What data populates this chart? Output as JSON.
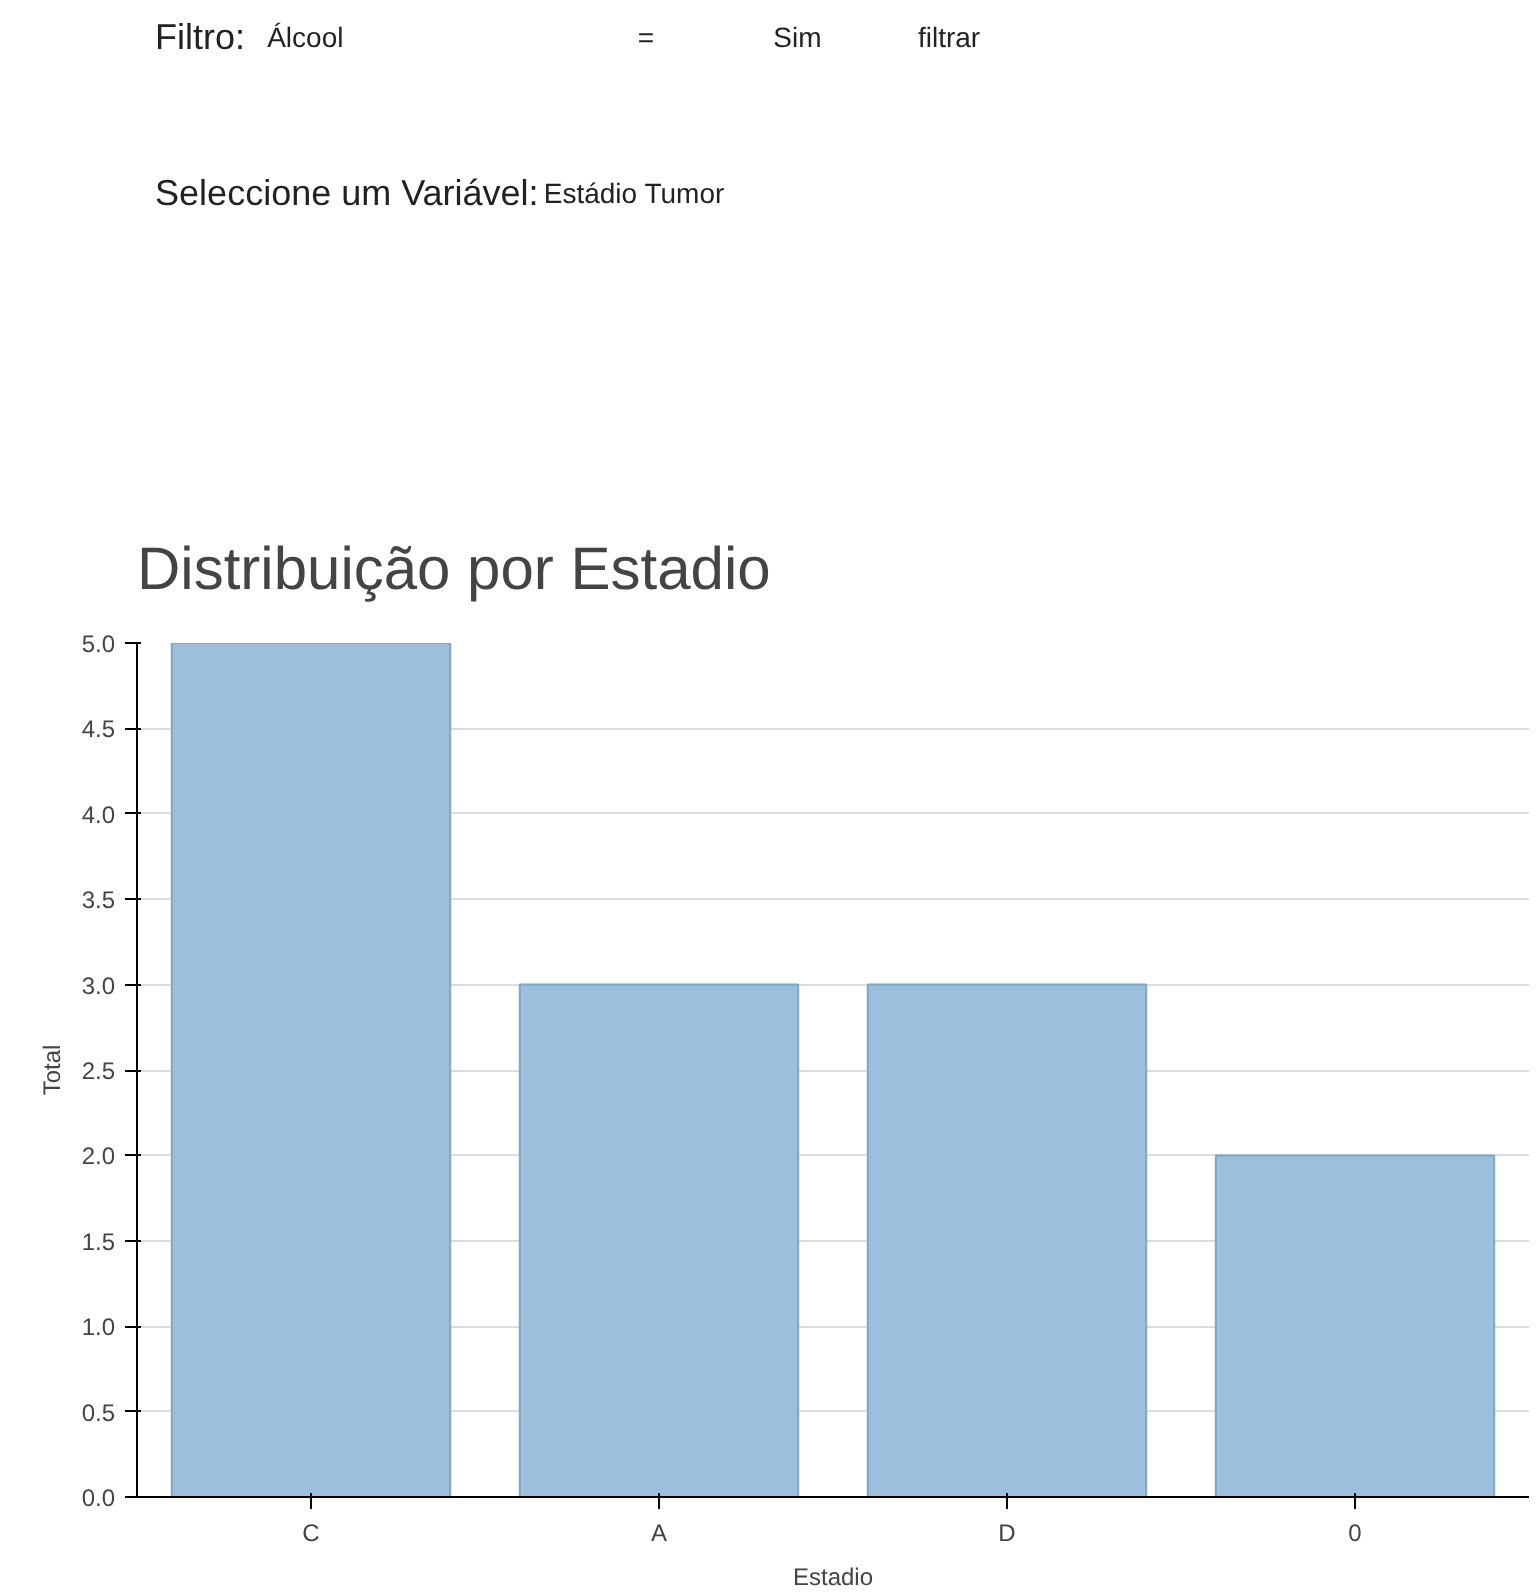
{
  "chart_data": {
    "type": "bar",
    "title": "Distribuição por Estadio",
    "xlabel": "Estadio",
    "ylabel": "Total",
    "categories": [
      "C",
      "A",
      "D",
      "0"
    ],
    "values": [
      5,
      3,
      3,
      2
    ],
    "color": "#9bbfdd",
    "ylim": [
      0,
      5
    ],
    "yticks": [
      {
        "value": 0,
        "label": "0.0"
      },
      {
        "value": 0.5,
        "label": "0.5"
      },
      {
        "value": 1,
        "label": "1.0"
      },
      {
        "value": 1.5,
        "label": "1.5"
      },
      {
        "value": 2,
        "label": "2.0"
      },
      {
        "value": 2.5,
        "label": "2.5"
      },
      {
        "value": 3,
        "label": "3.0"
      },
      {
        "value": 3.5,
        "label": "3.5"
      },
      {
        "value": 4,
        "label": "4.0"
      },
      {
        "value": 4.5,
        "label": "4.5"
      },
      {
        "value": 5,
        "label": "5.0"
      }
    ],
    "grid": "y",
    "annotations": [
      "Filtro:",
      "Álcool",
      "=",
      "Sim",
      "filtrar",
      "Seleccione um Variável:",
      "Estádio Tumor"
    ]
  }
}
